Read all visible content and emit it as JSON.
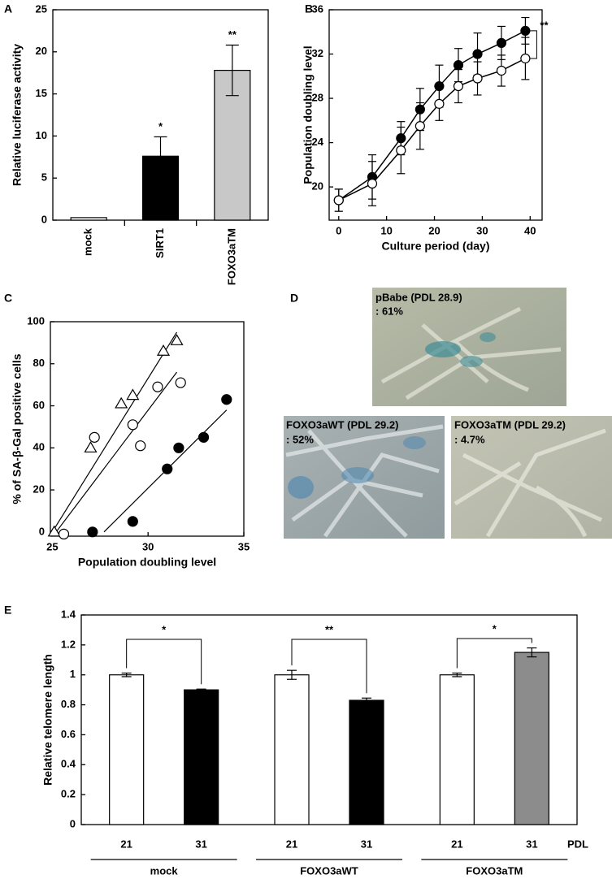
{
  "chart_data": [
    {
      "type": "bar",
      "panel": "A",
      "ylabel": "Relative luciferase activity",
      "categories": [
        "mock",
        "SIRT1",
        "FOXO3aTM"
      ],
      "values": [
        0.3,
        7.6,
        17.8
      ],
      "errors": [
        null,
        2.3,
        3.0
      ],
      "colors": [
        "#ffffff",
        "#000000",
        "#c8c8c8"
      ],
      "value_annotations": [
        null,
        "*",
        "**"
      ],
      "ylim": [
        0,
        25
      ],
      "yticks": [
        0,
        5,
        10,
        15,
        20,
        25
      ]
    },
    {
      "type": "line",
      "panel": "B",
      "xlabel": "Culture period (day)",
      "ylabel": "Population doubling level",
      "x": [
        0,
        7,
        13,
        17,
        21,
        25,
        29,
        34,
        39
      ],
      "series": [
        {
          "color": "#000000",
          "values": [
            18.8,
            20.9,
            24.4,
            27.0,
            29.1,
            31.0,
            32.0,
            33.0,
            34.1
          ],
          "errors": [
            1.0,
            2.0,
            1.5,
            1.9,
            1.9,
            1.5,
            1.9,
            1.5,
            1.2
          ]
        },
        {
          "color": "#ffffff",
          "values": [
            18.8,
            20.3,
            23.3,
            25.5,
            27.5,
            29.1,
            29.8,
            30.5,
            31.6
          ],
          "errors": [
            1.0,
            2.0,
            2.1,
            2.1,
            1.5,
            1.5,
            1.5,
            1.4,
            1.9
          ]
        }
      ],
      "annotation": "**",
      "xlim": [
        -2,
        42.5
      ],
      "xticks": [
        0,
        10,
        20,
        30,
        40
      ],
      "ylim": [
        17,
        36
      ],
      "yticks": [
        20,
        24,
        28,
        32,
        36
      ]
    },
    {
      "type": "scatter",
      "panel": "C",
      "xlabel": "Population doubling level",
      "ylabel": "% of SA-β-Gal positive cells",
      "series": [
        {
          "marker": "triangle",
          "color": "#ffffff",
          "x": [
            25.1,
            27.0,
            28.6,
            29.2,
            30.8,
            31.5
          ],
          "y": [
            0,
            40,
            61,
            65,
            86,
            91
          ]
        },
        {
          "marker": "circle",
          "color": "#ffffff",
          "x": [
            25.6,
            27.2,
            29.2,
            29.6,
            30.5,
            31.7
          ],
          "y": [
            -1,
            45,
            51,
            41,
            69,
            71
          ]
        },
        {
          "marker": "circle",
          "color": "#000000",
          "x": [
            27.1,
            29.2,
            31.0,
            31.6,
            32.9,
            34.1
          ],
          "y": [
            0,
            5,
            30,
            40,
            45,
            63
          ]
        }
      ],
      "fits": [
        {
          "x": [
            25,
            31.5
          ],
          "y": [
            0,
            95
          ]
        },
        {
          "x": [
            25.2,
            31.5
          ],
          "y": [
            0,
            76
          ]
        },
        {
          "x": [
            27.7,
            34.1
          ],
          "y": [
            0,
            58
          ]
        }
      ],
      "xlim": [
        24.9,
        35
      ],
      "xticks": [
        25,
        30,
        35
      ],
      "ylim": [
        -2,
        100
      ],
      "yticks": [
        0,
        20,
        40,
        60,
        80,
        100
      ]
    },
    {
      "type": "groupbar",
      "panel": "E",
      "ylabel": "Relative telomere length",
      "xlabel": "PDL",
      "categories": [
        "21",
        "31",
        "21",
        "31",
        "21",
        "31"
      ],
      "groups": [
        "mock",
        "FOXO3aWT",
        "FOXO3aTM"
      ],
      "values": [
        1.0,
        0.9,
        1.0,
        0.83,
        1.0,
        1.15
      ],
      "errors": [
        0.012,
        0.005,
        0.03,
        0.015,
        0.012,
        0.03
      ],
      "colors": [
        "#ffffff",
        "#000000",
        "#ffffff",
        "#000000",
        "#ffffff",
        "#8c8c8c"
      ],
      "annotations": [
        "*",
        "**",
        "*"
      ],
      "ylim": [
        0,
        1.4
      ],
      "yticks": [
        0,
        0.2,
        0.4,
        0.6,
        0.8,
        1,
        1.2,
        1.4
      ]
    }
  ],
  "images": {
    "panel": "D",
    "items": [
      {
        "lines": [
          "pBabe (PDL 28.9)",
          ": 61%"
        ]
      },
      {
        "lines": [
          "FOXO3aWT (PDL 29.2)",
          ": 52%"
        ]
      },
      {
        "lines": [
          "FOXO3aTM (PDL 29.2)",
          ": 4.7%"
        ]
      }
    ]
  }
}
